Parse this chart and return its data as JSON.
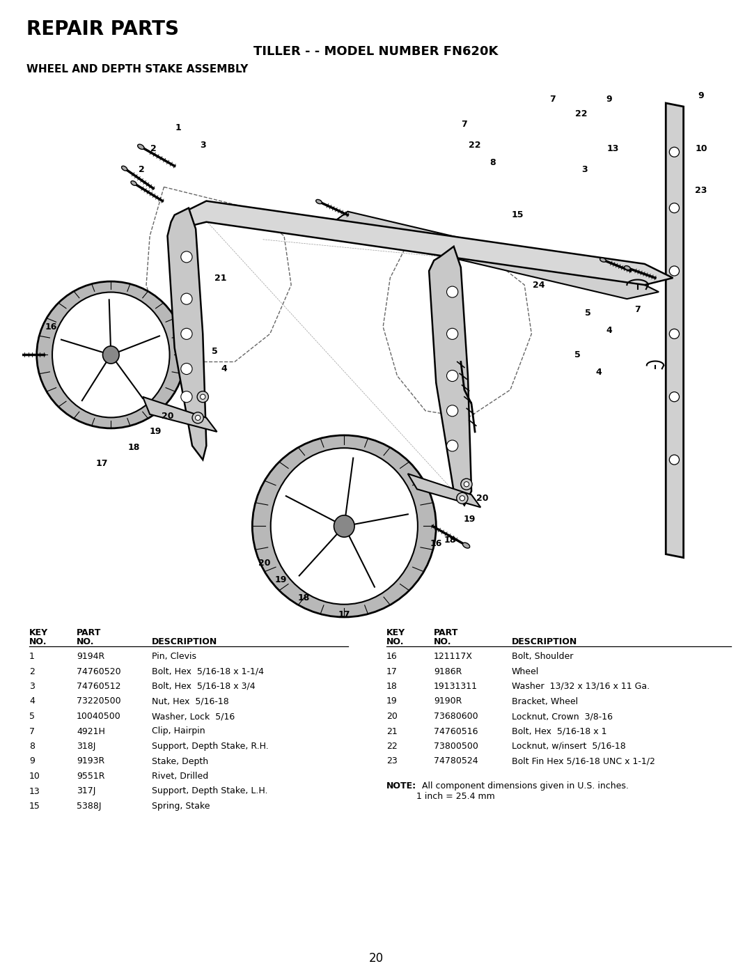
{
  "title_main": "REPAIR PARTS",
  "title_sub": "TILLER - - MODEL NUMBER FN620K",
  "title_section": "WHEEL AND DEPTH STAKE ASSEMBLY",
  "page_number": "20",
  "background_color": "#ffffff",
  "text_color": "#000000",
  "left_table": {
    "rows": [
      [
        "1",
        "9194R",
        "Pin, Clevis"
      ],
      [
        "2",
        "74760520",
        "Bolt, Hex  5/16-18 x 1-1/4"
      ],
      [
        "3",
        "74760512",
        "Bolt, Hex  5/16-18 x 3/4"
      ],
      [
        "4",
        "73220500",
        "Nut, Hex  5/16-18"
      ],
      [
        "5",
        "10040500",
        "Washer, Lock  5/16"
      ],
      [
        "7",
        "4921H",
        "Clip, Hairpin"
      ],
      [
        "8",
        "318J",
        "Support, Depth Stake, R.H."
      ],
      [
        "9",
        "9193R",
        "Stake, Depth"
      ],
      [
        "10",
        "9551R",
        "Rivet, Drilled"
      ],
      [
        "13",
        "317J",
        "Support, Depth Stake, L.H."
      ],
      [
        "15",
        "5388J",
        "Spring, Stake"
      ]
    ]
  },
  "right_table": {
    "rows": [
      [
        "16",
        "121117X",
        "Bolt, Shoulder"
      ],
      [
        "17",
        "9186R",
        "Wheel"
      ],
      [
        "18",
        "19131311",
        "Washer  13/32 x 13/16 x 11 Ga."
      ],
      [
        "19",
        "9190R",
        "Bracket, Wheel"
      ],
      [
        "20",
        "73680600",
        "Locknut, Crown  3/8-16"
      ],
      [
        "21",
        "74760516",
        "Bolt, Hex  5/16-18 x 1"
      ],
      [
        "22",
        "73800500",
        "Locknut, w/insert  5/16-18"
      ],
      [
        "23",
        "74780524",
        "Bolt Fin Hex 5/16-18 UNC x 1-1/2"
      ]
    ]
  },
  "note_bold": "NOTE:",
  "note_text1": "  All component dimensions given in U.S. inches.",
  "note_text2": "1 inch = 25.4 mm",
  "diagram_bounds": [
    0.03,
    0.355,
    0.94,
    0.575
  ]
}
